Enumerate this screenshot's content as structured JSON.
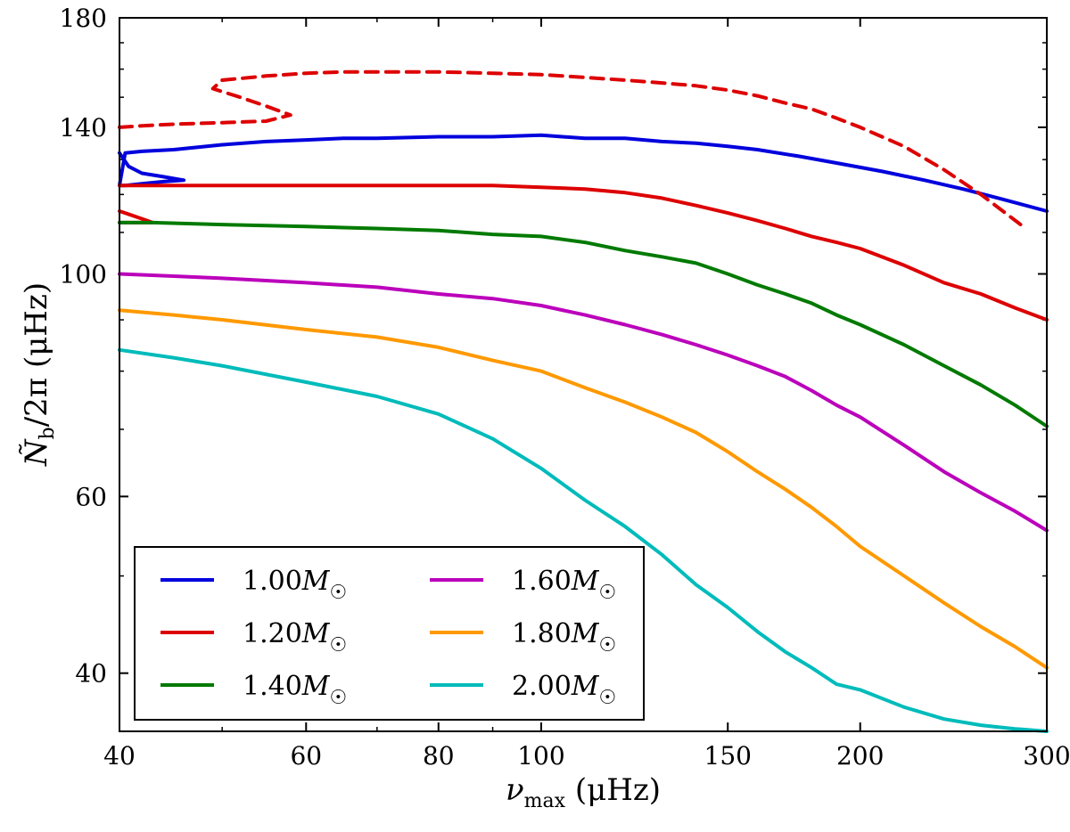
{
  "chart_data": {
    "type": "line",
    "title": "",
    "xlabel": {
      "symbol": "ν",
      "sub": "max",
      "unit": " (μHz)"
    },
    "ylabel": {
      "symbol": "Ñ",
      "sub": "b",
      "rest": "/2π (μHz)"
    },
    "xscale": "log",
    "yscale": "log",
    "xlim": [
      40,
      300
    ],
    "ylim": [
      35,
      180
    ],
    "xticks": [
      {
        "value": 40,
        "label": "40"
      },
      {
        "value": 60,
        "label": "60"
      },
      {
        "value": 80,
        "label": "80"
      },
      {
        "value": 100,
        "label": "100"
      },
      {
        "value": 150,
        "label": "150"
      },
      {
        "value": 200,
        "label": "200"
      },
      {
        "value": 300,
        "label": "300"
      }
    ],
    "yticks": [
      {
        "value": 40,
        "label": "40"
      },
      {
        "value": 60,
        "label": "60"
      },
      {
        "value": 100,
        "label": "100"
      },
      {
        "value": 140,
        "label": "140"
      },
      {
        "value": 180,
        "label": "180"
      }
    ],
    "legend": {
      "position": "lower-left",
      "columns": 2,
      "entries": [
        {
          "series": "1.00",
          "mass": "1.00",
          "sym": "M",
          "sub": "☉"
        },
        {
          "series": "1.20",
          "mass": "1.20",
          "sym": "M",
          "sub": "☉"
        },
        {
          "series": "1.40",
          "mass": "1.40",
          "sym": "M",
          "sub": "☉"
        },
        {
          "series": "1.60",
          "mass": "1.60",
          "sym": "M",
          "sub": "☉"
        },
        {
          "series": "1.80",
          "mass": "1.80",
          "sym": "M",
          "sub": "☉"
        },
        {
          "series": "2.00",
          "mass": "2.00",
          "sym": "M",
          "sub": "☉"
        }
      ]
    },
    "series": [
      {
        "name": "1.00",
        "color": "#0000dd",
        "style": "solid",
        "x": [
          40,
          40.8,
          42,
          44,
          46,
          44,
          42,
          40.5,
          40,
          40.5,
          42,
          45,
          50,
          55,
          60,
          65,
          70,
          80,
          90,
          100,
          110,
          120,
          130,
          140,
          150,
          160,
          175,
          190,
          210,
          230,
          250,
          270,
          300
        ],
        "y": [
          132,
          128,
          126,
          125,
          124,
          123.6,
          123,
          122.5,
          122.5,
          132,
          132.5,
          133,
          134.5,
          135.5,
          136,
          136.5,
          136.5,
          137,
          137,
          137.5,
          136.5,
          136.5,
          135.5,
          135,
          134,
          133,
          131,
          129,
          126.5,
          124,
          121.5,
          119,
          115.5
        ]
      },
      {
        "name": "1.20",
        "color": "#dd0000",
        "style": "solid",
        "x": [
          40,
          42,
          50,
          60,
          70,
          80,
          90,
          100,
          110,
          120,
          130,
          140,
          150,
          160,
          170,
          180,
          190,
          200,
          220,
          240,
          260,
          280,
          300
        ],
        "y": [
          122.5,
          122.5,
          122.5,
          122.5,
          122.5,
          122.5,
          122.5,
          122,
          121.5,
          120.5,
          119,
          117,
          115,
          113,
          111,
          109,
          107.5,
          106,
          102,
          98,
          95.5,
          92.5,
          90
        ]
      },
      {
        "name": "1.20-secondary",
        "color": "#dd0000",
        "style": "solid",
        "x": [
          40,
          41,
          42,
          43,
          42,
          41,
          40
        ],
        "y": [
          115.5,
          114.5,
          113.5,
          112.5,
          112.5,
          112.5,
          112.5
        ]
      },
      {
        "name": "1.20-dashed",
        "color": "#dd0000",
        "style": "dashed",
        "x": [
          40,
          42,
          45,
          50,
          55,
          58,
          55,
          52,
          49,
          50,
          55,
          60,
          65,
          70,
          80,
          90,
          100,
          110,
          120,
          130,
          140,
          150,
          160,
          170,
          180,
          190,
          200,
          220,
          240,
          260,
          285
        ],
        "y": [
          140,
          140.5,
          141,
          141.5,
          142,
          144,
          147,
          150,
          153,
          156,
          157.5,
          158.5,
          159,
          159,
          159,
          158.5,
          158,
          157,
          156,
          155,
          154,
          152.5,
          150.5,
          148,
          146,
          143,
          140,
          134,
          127,
          120,
          111.5
        ]
      },
      {
        "name": "1.40",
        "color": "#007a00",
        "style": "solid",
        "x": [
          40,
          43,
          50,
          60,
          70,
          80,
          90,
          100,
          110,
          120,
          130,
          140,
          150,
          160,
          170,
          180,
          190,
          200,
          220,
          240,
          260,
          280,
          300
        ],
        "y": [
          112.5,
          112.5,
          112,
          111.5,
          111,
          110.5,
          109.5,
          109,
          107.5,
          105.5,
          104,
          102.5,
          100,
          97.5,
          95.5,
          93.5,
          91,
          89,
          85,
          81,
          77.5,
          74,
          70.5
        ]
      },
      {
        "name": "1.60",
        "color": "#bb00bb",
        "style": "solid",
        "x": [
          40,
          45,
          50,
          60,
          70,
          80,
          90,
          100,
          110,
          120,
          130,
          140,
          150,
          160,
          170,
          180,
          190,
          200,
          220,
          240,
          260,
          280,
          300
        ],
        "y": [
          100,
          99.5,
          99,
          98,
          97,
          95.5,
          94.5,
          93,
          91,
          89,
          87,
          85,
          83,
          81,
          79,
          76.5,
          74,
          72,
          67.5,
          63.5,
          60.5,
          58,
          55.5
        ]
      },
      {
        "name": "1.80",
        "color": "#ff9900",
        "style": "solid",
        "x": [
          40,
          45,
          50,
          60,
          70,
          80,
          90,
          100,
          110,
          120,
          130,
          140,
          150,
          160,
          170,
          180,
          190,
          200,
          220,
          240,
          260,
          280,
          300
        ],
        "y": [
          92,
          91,
          90,
          88,
          86.5,
          84.5,
          82,
          80,
          77,
          74.5,
          72,
          69.5,
          66.5,
          63.5,
          61,
          58.5,
          56,
          53.5,
          50,
          47,
          44.5,
          42.5,
          40.5
        ]
      },
      {
        "name": "2.00",
        "color": "#00bbbb",
        "style": "solid",
        "x": [
          40,
          45,
          50,
          60,
          70,
          80,
          90,
          100,
          110,
          120,
          130,
          140,
          150,
          160,
          170,
          180,
          190,
          200,
          220,
          240,
          260,
          280,
          300
        ],
        "y": [
          84,
          82.5,
          81,
          78,
          75.5,
          72.5,
          68.5,
          64,
          59.5,
          56,
          52.5,
          49,
          46.5,
          44,
          42,
          40.5,
          39,
          38.5,
          37,
          36,
          35.5,
          35.2,
          35
        ]
      }
    ]
  }
}
